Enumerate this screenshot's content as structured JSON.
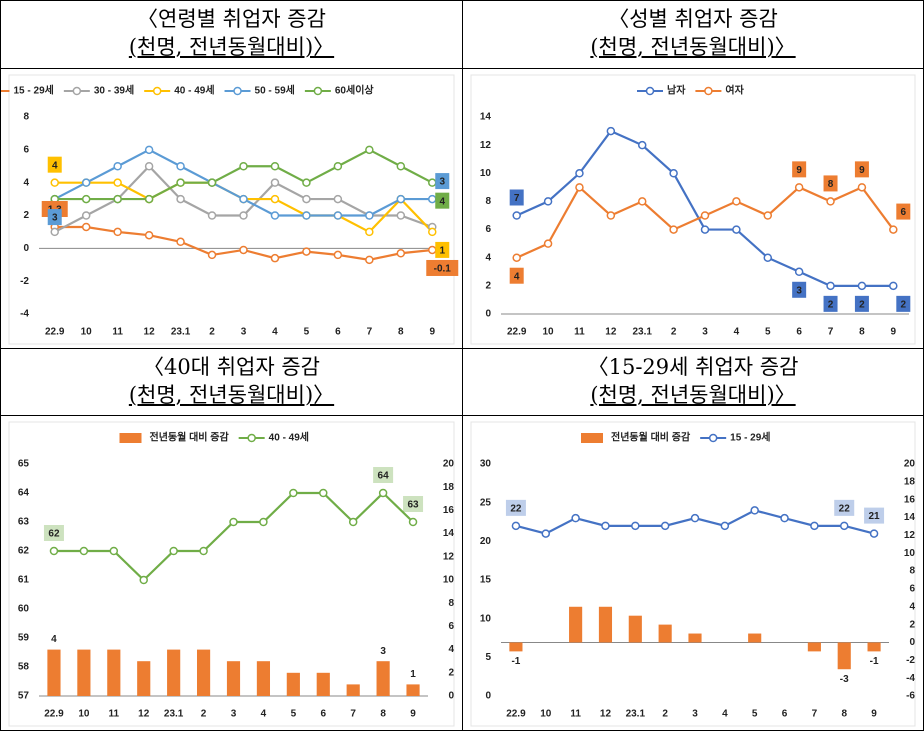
{
  "chart_data": [
    {
      "type": "line",
      "title": "〈연령별 취업자 증감",
      "subtitle": "(천명, 전년동월대비)〉",
      "categories": [
        "22.9",
        "10",
        "11",
        "12",
        "23.1",
        "2",
        "3",
        "4",
        "5",
        "6",
        "7",
        "8",
        "9"
      ],
      "ylim": [
        -4,
        8
      ],
      "yticks": [
        -4,
        -2,
        0,
        2,
        4,
        6,
        8
      ],
      "grid": false,
      "series": [
        {
          "name": "15 - 29세",
          "color": "#ed7d31",
          "values": [
            1.3,
            1.3,
            1.0,
            0.8,
            0.4,
            -0.4,
            -0.1,
            -0.6,
            -0.2,
            -0.4,
            -0.7,
            -0.3,
            -0.1
          ],
          "value_labels": [
            "1.3",
            null,
            null,
            null,
            null,
            null,
            null,
            null,
            null,
            null,
            null,
            null,
            "-0.1"
          ]
        },
        {
          "name": "30 - 39세",
          "color": "#a5a5a5",
          "values": [
            1,
            2,
            3,
            5,
            3,
            2,
            2,
            4,
            3,
            3,
            2,
            2,
            1.3
          ]
        },
        {
          "name": "40 - 49세",
          "color": "#ffc000",
          "values": [
            4,
            4,
            4,
            3,
            4,
            4,
            3,
            3,
            2,
            2,
            1,
            3,
            1
          ],
          "value_labels": [
            "4",
            null,
            null,
            null,
            null,
            null,
            null,
            null,
            null,
            null,
            null,
            null,
            "1"
          ]
        },
        {
          "name": "50 - 59세",
          "color": "#5b9bd5",
          "values": [
            3,
            4,
            5,
            6,
            5,
            4,
            3,
            2,
            2,
            2,
            2,
            3,
            3
          ],
          "value_labels": [
            "3",
            null,
            null,
            null,
            null,
            null,
            null,
            null,
            null,
            null,
            null,
            null,
            "3"
          ]
        },
        {
          "name": "60세이상",
          "color": "#70ad47",
          "values": [
            3,
            3,
            3,
            3,
            4,
            4,
            5,
            5,
            4,
            5,
            6,
            5,
            4
          ],
          "value_labels": [
            null,
            null,
            null,
            null,
            null,
            null,
            null,
            null,
            null,
            null,
            null,
            null,
            "4"
          ]
        }
      ]
    },
    {
      "type": "line",
      "title": "〈성별 취업자 증감",
      "subtitle": "(천명, 전년동월대비)〉",
      "categories": [
        "22.9",
        "10",
        "11",
        "12",
        "23.1",
        "2",
        "3",
        "4",
        "5",
        "6",
        "7",
        "8",
        "9"
      ],
      "ylim": [
        0,
        14
      ],
      "yticks": [
        0,
        2,
        4,
        6,
        8,
        10,
        12,
        14
      ],
      "grid": false,
      "series": [
        {
          "name": "남자",
          "color": "#4472c4",
          "values": [
            7,
            8,
            10,
            13,
            12,
            10,
            6,
            6,
            4,
            3,
            2,
            2,
            2
          ],
          "value_labels": [
            "7",
            null,
            null,
            null,
            null,
            null,
            null,
            null,
            null,
            "3",
            "2",
            "2",
            "2"
          ]
        },
        {
          "name": "여자",
          "color": "#ed7d31",
          "values": [
            4,
            5,
            9,
            7,
            8,
            6,
            7,
            8,
            7,
            9,
            8,
            9,
            6
          ],
          "value_labels": [
            "4",
            null,
            null,
            null,
            null,
            null,
            null,
            null,
            null,
            "9",
            "8",
            "9",
            "6"
          ]
        }
      ]
    },
    {
      "type": "combo",
      "title": "〈40대 취업자 증감",
      "subtitle": "(천명, 전년동월대비)〉",
      "categories": [
        "22.9",
        "10",
        "11",
        "12",
        "23.1",
        "2",
        "3",
        "4",
        "5",
        "6",
        "7",
        "8",
        "9"
      ],
      "ylim": [
        57,
        65
      ],
      "yticks": [
        57,
        58,
        59,
        60,
        61,
        62,
        63,
        64,
        65
      ],
      "y2lim": [
        0,
        20
      ],
      "y2ticks": [
        0,
        2,
        4,
        6,
        8,
        10,
        12,
        14,
        16,
        18,
        20
      ],
      "grid": false,
      "series": [
        {
          "name": "전년동월 대비 증감",
          "type": "bar",
          "axis": "y2",
          "color": "#ed7d31",
          "values": [
            4,
            4,
            4,
            3,
            4,
            4,
            3,
            3,
            2,
            2,
            1,
            3,
            1
          ],
          "value_labels": [
            "4",
            null,
            null,
            null,
            null,
            null,
            null,
            null,
            null,
            null,
            null,
            "3",
            "1"
          ]
        },
        {
          "name": "40 - 49세",
          "type": "line",
          "color": "#70ad47",
          "values": [
            62,
            62,
            62,
            61,
            62,
            62,
            63,
            63,
            64,
            64,
            63,
            64,
            63
          ],
          "value_labels": [
            "62",
            null,
            null,
            null,
            null,
            null,
            null,
            null,
            null,
            null,
            null,
            "64",
            "63"
          ]
        }
      ]
    },
    {
      "type": "combo",
      "title": "〈15-29세 취업자 증감",
      "subtitle": "(천명, 전년동월대비)〉",
      "categories": [
        "22.9",
        "10",
        "11",
        "12",
        "23.1",
        "2",
        "3",
        "4",
        "5",
        "6",
        "7",
        "8",
        "9"
      ],
      "ylim": [
        0,
        30
      ],
      "yticks": [
        0,
        5,
        10,
        15,
        20,
        25,
        30
      ],
      "y2lim": [
        -6,
        20
      ],
      "y2ticks": [
        -6,
        -4,
        -2,
        0,
        2,
        4,
        6,
        8,
        10,
        12,
        14,
        16,
        18,
        20
      ],
      "grid": false,
      "series": [
        {
          "name": "전년동월 대비 증감",
          "type": "bar",
          "axis": "y2",
          "color": "#ed7d31",
          "values": [
            -1,
            0,
            4,
            4,
            3,
            2,
            1,
            0,
            1,
            0,
            -1,
            -3,
            -1
          ],
          "value_labels": [
            "-1",
            null,
            null,
            null,
            null,
            null,
            null,
            null,
            null,
            null,
            null,
            "-3",
            "-1"
          ]
        },
        {
          "name": "15 - 29세",
          "type": "line",
          "color": "#4472c4",
          "values": [
            22,
            21,
            23,
            22,
            22,
            22,
            23,
            22,
            24,
            23,
            22,
            22,
            21
          ],
          "value_labels": [
            "22",
            null,
            null,
            null,
            null,
            null,
            null,
            null,
            null,
            null,
            null,
            "22",
            "21"
          ]
        }
      ]
    }
  ]
}
